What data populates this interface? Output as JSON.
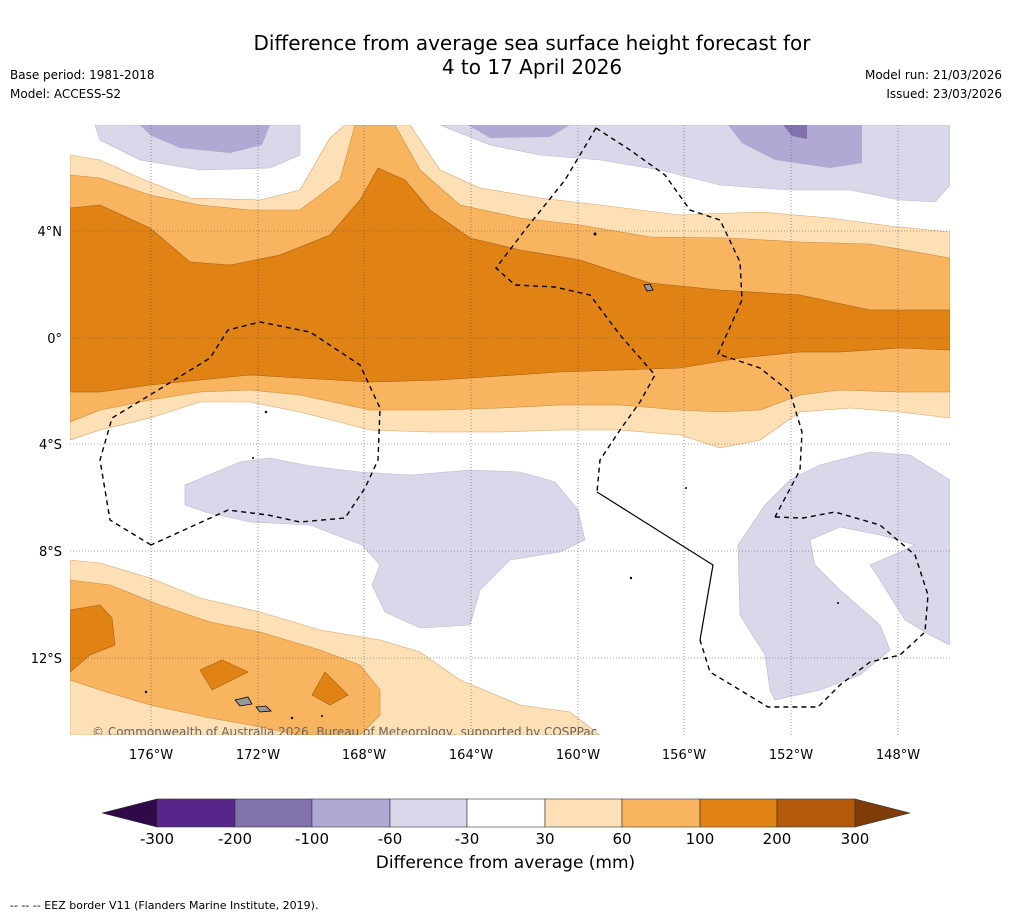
{
  "header": {
    "title_line1": "Difference from average sea surface height forecast for",
    "title_line2": "4 to 17 April 2026",
    "base_period": "Base period: 1981-2018",
    "model": "Model: ACCESS-S2",
    "model_run": "Model run: 21/03/2026",
    "issued": "Issued: 23/03/2026"
  },
  "map": {
    "lat_labels": [
      "4°N",
      "0°",
      "4°S",
      "8°S",
      "12°S"
    ],
    "lon_labels": [
      "176°W",
      "172°W",
      "168°W",
      "164°W",
      "160°W",
      "156°W",
      "152°W",
      "148°W"
    ],
    "copyright": "© Commonwealth of Australia 2026, Bureau of Meteorology, supported by COSPPac"
  },
  "colorbar": {
    "ticks": [
      "-300",
      "-200",
      "-100",
      "-60",
      "-30",
      "30",
      "60",
      "100",
      "200",
      "300"
    ],
    "colors": [
      "#2e0a49",
      "#57268a",
      "#8172ad",
      "#afa9d3",
      "#d8d8ea",
      "#ffffff",
      "#fde0b5",
      "#f9b45f",
      "#e08214",
      "#b25a0a",
      "#7f3b08"
    ],
    "label": "Difference from average (mm)"
  },
  "footnote": "--  --  -- EEZ border V11 (Flanders Marine Institute, 2019)."
}
